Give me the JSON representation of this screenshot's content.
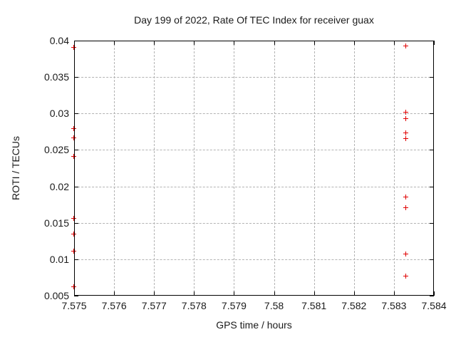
{
  "chart_data": {
    "type": "scatter",
    "title": "Day 199 of 2022, Rate Of TEC Index for receiver guax",
    "xlabel": "GPS time / hours",
    "ylabel": "ROTI / TECUs",
    "xlim": [
      7.575,
      7.584
    ],
    "ylim": [
      0.005,
      0.04
    ],
    "grid": true,
    "legend": "none",
    "marker": "plus",
    "colors": {
      "marker": "#e00000",
      "grid": "#b3b3b3",
      "axis": "#000000",
      "text": "#1a1a1a"
    },
    "x_ticks": [
      {
        "value": 7.575,
        "label": "7.575"
      },
      {
        "value": 7.576,
        "label": "7.576"
      },
      {
        "value": 7.577,
        "label": "7.577"
      },
      {
        "value": 7.578,
        "label": "7.578"
      },
      {
        "value": 7.579,
        "label": "7.579"
      },
      {
        "value": 7.58,
        "label": "7.58"
      },
      {
        "value": 7.581,
        "label": "7.581"
      },
      {
        "value": 7.582,
        "label": "7.582"
      },
      {
        "value": 7.583,
        "label": "7.583"
      },
      {
        "value": 7.584,
        "label": "7.584"
      }
    ],
    "y_ticks": [
      {
        "value": 0.005,
        "label": "0.005"
      },
      {
        "value": 0.01,
        "label": "0.01"
      },
      {
        "value": 0.015,
        "label": "0.015"
      },
      {
        "value": 0.02,
        "label": "0.02"
      },
      {
        "value": 0.025,
        "label": "0.025"
      },
      {
        "value": 0.03,
        "label": "0.03"
      },
      {
        "value": 0.035,
        "label": "0.035"
      },
      {
        "value": 0.04,
        "label": "0.04"
      }
    ],
    "series": [
      {
        "name": "ROTI",
        "points": [
          [
            7.575,
            0.039
          ],
          [
            7.575,
            0.0279
          ],
          [
            7.575,
            0.0266
          ],
          [
            7.575,
            0.0241
          ],
          [
            7.575,
            0.0156
          ],
          [
            7.575,
            0.0134
          ],
          [
            7.575,
            0.0111
          ],
          [
            7.575,
            0.0062
          ],
          [
            7.5833,
            0.0392
          ],
          [
            7.5833,
            0.0301
          ],
          [
            7.5833,
            0.0292
          ],
          [
            7.5833,
            0.0273
          ],
          [
            7.5833,
            0.0265
          ],
          [
            7.5833,
            0.0185
          ],
          [
            7.5833,
            0.017
          ],
          [
            7.5833,
            0.0107
          ],
          [
            7.5833,
            0.0076
          ]
        ]
      }
    ]
  }
}
